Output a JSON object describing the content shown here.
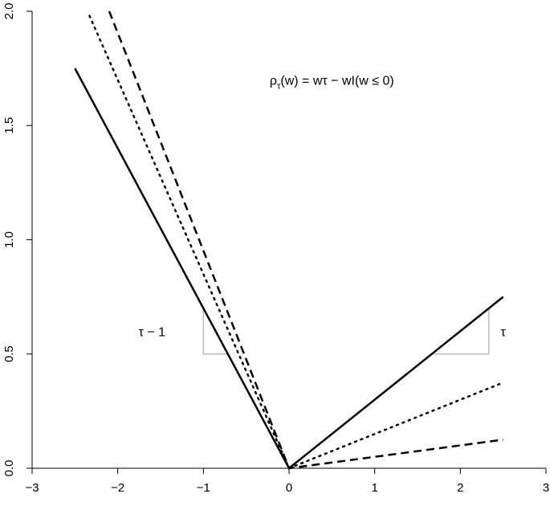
{
  "chart_data": {
    "type": "line",
    "title": "",
    "xlabel": "",
    "ylabel": "",
    "xlim": [
      -3,
      3
    ],
    "ylim": [
      0,
      2
    ],
    "x_ticks": [
      "−3",
      "−2",
      "−1",
      "0",
      "1",
      "2",
      "3"
    ],
    "y_ticks": [
      "0.0",
      "0.5",
      "1.0",
      "1.5",
      "2.0"
    ],
    "grid": false,
    "legend": "none",
    "series": [
      {
        "style": "solid",
        "color": "#000000",
        "points": [
          [
            -2.5,
            1.75
          ],
          [
            0,
            0
          ],
          [
            2.5,
            0.75
          ]
        ]
      },
      {
        "style": "dotted",
        "color": "#000000",
        "points": [
          [
            -2.33,
            1.98
          ],
          [
            0,
            0
          ],
          [
            2.5,
            0.375
          ]
        ]
      },
      {
        "style": "dashed",
        "color": "#000000",
        "points": [
          [
            -2.1,
            2.0
          ],
          [
            0,
            0
          ],
          [
            2.5,
            0.125
          ]
        ]
      }
    ],
    "slope_guides": {
      "color": "#bbbbbb",
      "left": {
        "label": "τ − 1",
        "points": [
          [
            -1,
            0.7
          ],
          [
            -1,
            0.5
          ],
          [
            -0.714,
            0.5
          ]
        ]
      },
      "right": {
        "label": "τ",
        "points": [
          [
            1.667,
            0.5
          ],
          [
            2.333,
            0.5
          ],
          [
            2.333,
            0.7
          ]
        ]
      }
    },
    "formula": {
      "rho": "ρ",
      "sub": "τ",
      "rhs": "(w) = wτ − wI(w ≤ 0)",
      "at": [
        0.5,
        1.7
      ]
    }
  }
}
